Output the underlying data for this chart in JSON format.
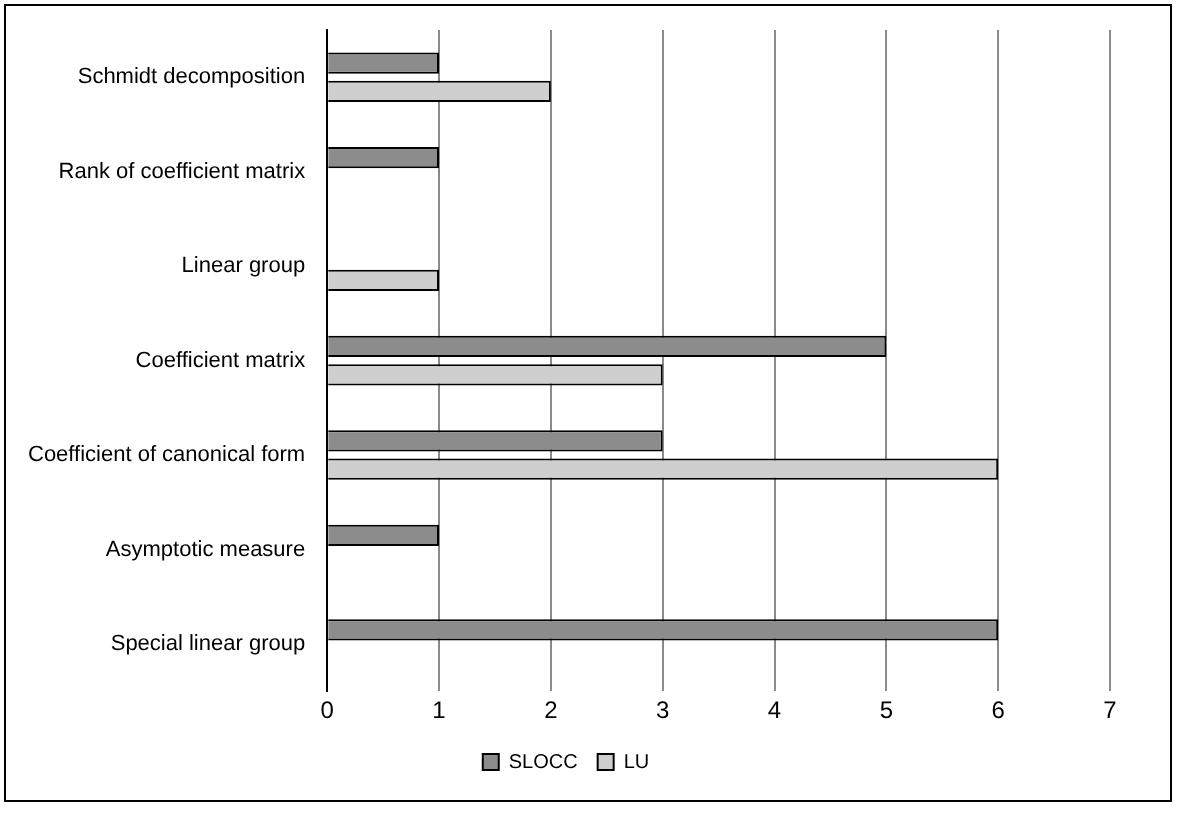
{
  "chart_data": {
    "type": "bar",
    "orientation": "horizontal",
    "categories": [
      "Schmidt decomposition",
      "Rank of coefficient matrix",
      "Linear group",
      "Coefficient matrix",
      "Coefficient of canonical form",
      "Asymptotic measure",
      "Special linear group"
    ],
    "series": [
      {
        "name": "SLOCC",
        "color": "#8c8c8c",
        "values": [
          1,
          1,
          0,
          5,
          3,
          1,
          6
        ]
      },
      {
        "name": "LU",
        "color": "#cfcfcf",
        "values": [
          2,
          0,
          1,
          3,
          6,
          0,
          0
        ]
      }
    ],
    "xlim": [
      0,
      7
    ],
    "xticks": [
      0,
      1,
      2,
      3,
      4,
      5,
      6,
      7
    ],
    "grid": "x",
    "legend": "bottom"
  }
}
